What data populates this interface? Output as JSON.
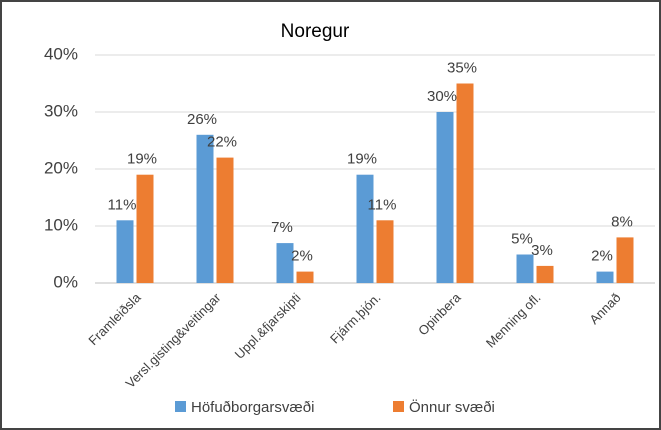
{
  "chart_data": {
    "type": "bar",
    "title": "Noregur",
    "categories": [
      "Framleiðsla",
      "Versl.gisting&veitingar",
      "Uppl.&fjarskipti",
      "Fjárm.þjón.",
      "Opinbera",
      "Menning ofl.",
      "Annað"
    ],
    "series": [
      {
        "name": "Höfuðborgarsvæði",
        "color": "#5b9bd5",
        "values": [
          11,
          26,
          7,
          19,
          30,
          5,
          2
        ],
        "value_labels": [
          "11%",
          "26%",
          "7%",
          "19%",
          "30%",
          "5%",
          "2%"
        ]
      },
      {
        "name": "Önnur svæði",
        "color": "#ed7d31",
        "values": [
          19,
          22,
          2,
          11,
          35,
          3,
          8
        ],
        "value_labels": [
          "19%",
          "22%",
          "2%",
          "11%",
          "35%",
          "3%",
          "8%"
        ]
      }
    ],
    "ylim": [
      0,
      40
    ],
    "yticks": [
      {
        "value": 0,
        "label": "0%"
      },
      {
        "value": 10,
        "label": "10%"
      },
      {
        "value": 20,
        "label": "20%"
      },
      {
        "value": 30,
        "label": "30%"
      },
      {
        "value": 40,
        "label": "40%"
      }
    ],
    "grid": true,
    "legend": "bottom"
  }
}
